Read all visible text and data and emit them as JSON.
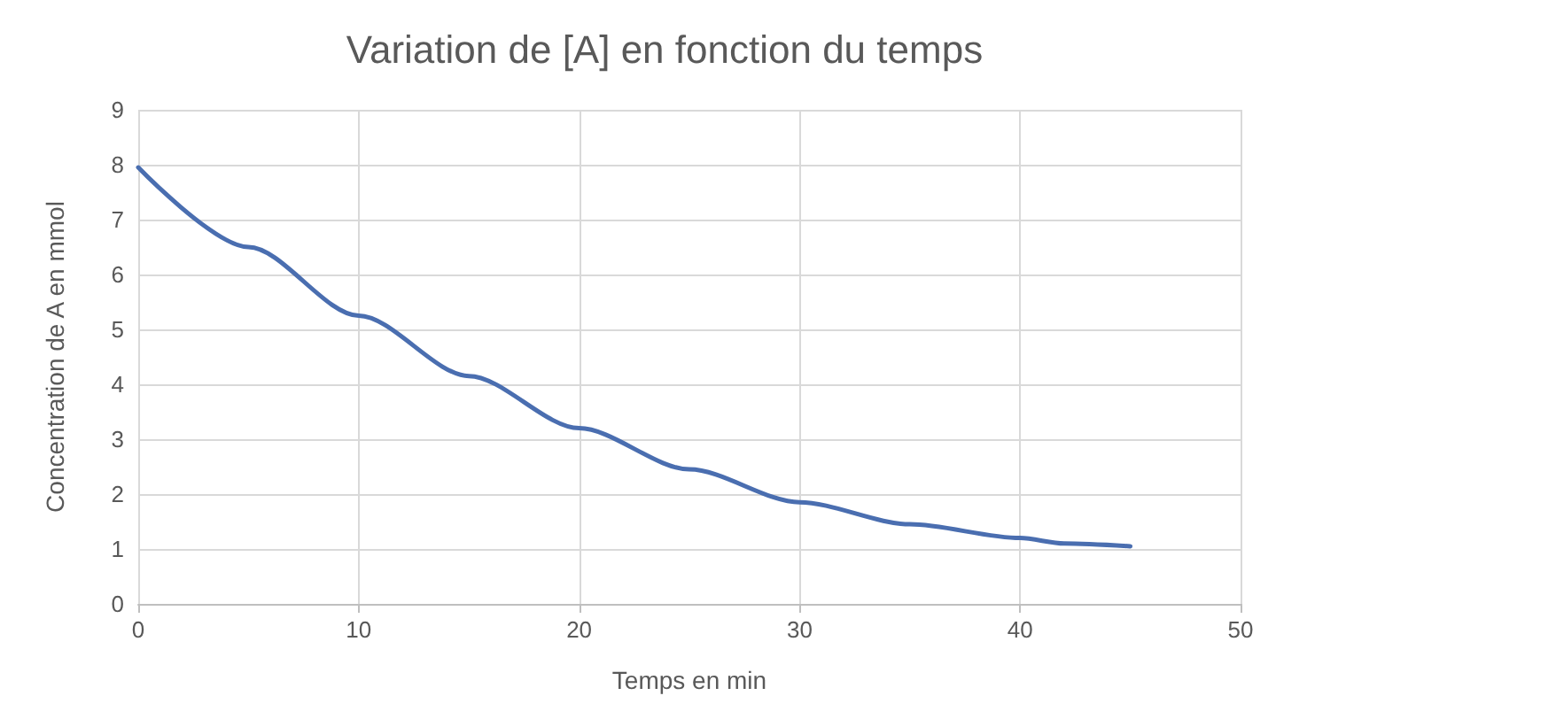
{
  "chart_data": {
    "type": "line",
    "title": "Variation de [A] en fonction du temps",
    "xlabel": "Temps en min",
    "ylabel": "Concentration de A en mmol",
    "x": [
      0,
      5,
      10,
      15,
      20,
      25,
      30,
      35,
      40,
      42,
      45
    ],
    "series": [
      {
        "color": "#4a6eb0",
        "values": [
          7.95,
          6.5,
          5.25,
          4.15,
          3.2,
          2.45,
          1.85,
          1.45,
          1.2,
          1.1,
          1.05
        ]
      }
    ],
    "xlim": [
      0,
      50
    ],
    "xticks": [
      0,
      10,
      20,
      30,
      40,
      50
    ],
    "ylim": [
      0,
      9
    ],
    "yticks": [
      0,
      1,
      2,
      3,
      4,
      5,
      6,
      7,
      8,
      9
    ],
    "grid": true,
    "marker": "none",
    "line_style": "solid"
  }
}
